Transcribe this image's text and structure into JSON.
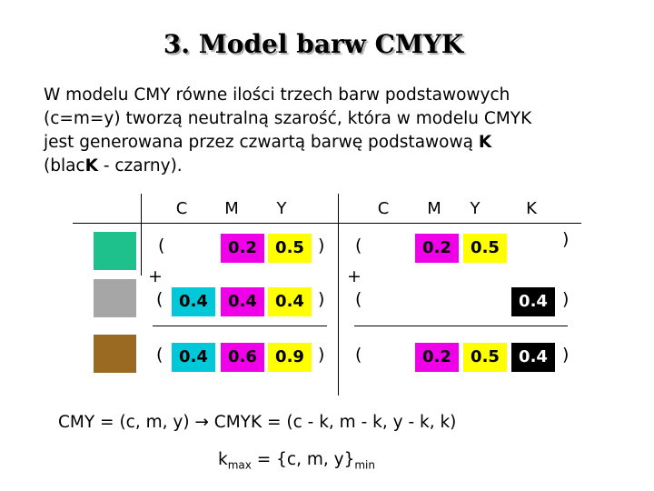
{
  "title": "3. Model barw CMYK",
  "paragraph": [
    [
      "W modelu CMY równe ilości trzech barw podstawowych"
    ],
    [
      "(c=m=y) tworzą neutralną szarość, która w modelu CMYK"
    ],
    [
      "jest generowana przez czwartą barwę podstawową ",
      "K"
    ],
    [
      "(blac",
      "K",
      " - czarny)."
    ]
  ],
  "table": {
    "headers_left": [
      "C",
      "M",
      "Y"
    ],
    "headers_right": [
      "C",
      "M",
      "Y",
      "K"
    ],
    "symbols": {
      "open": "(",
      "close": ")",
      "plus": "+"
    },
    "rows": [
      {
        "left": [
          null,
          "0.2",
          "0.5"
        ],
        "right": [
          null,
          "0.2",
          "0.5",
          null
        ]
      },
      {
        "left": [
          "0.4",
          "0.4",
          "0.4"
        ],
        "right": [
          null,
          null,
          null,
          "0.4"
        ]
      },
      {
        "left": [
          "0.4",
          "0.6",
          "0.9"
        ],
        "right": [
          null,
          "0.2",
          "0.5",
          "0.4"
        ]
      }
    ]
  },
  "formula": "CMY = (c, m, y) → CMYK = (c - k, m - k, y - k, k)",
  "kmax": {
    "base": "k",
    "sub": "max",
    "middle": " = {c, m, y}",
    "sub2": "min"
  }
}
